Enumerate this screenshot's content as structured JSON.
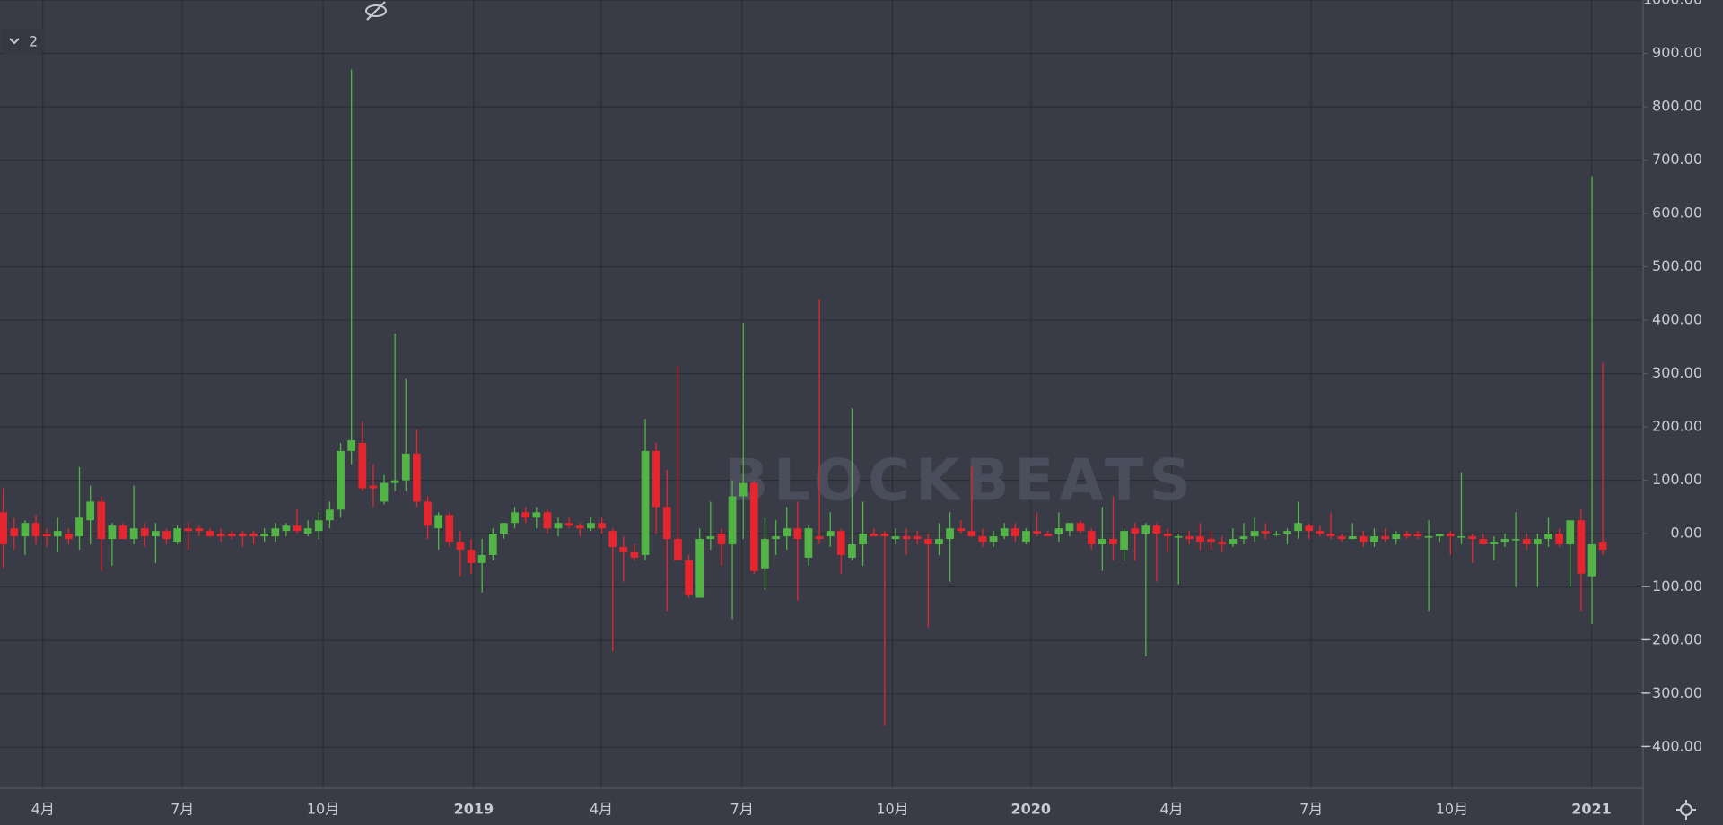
{
  "indicator_label": "2",
  "watermark": "BLOCKBEATS",
  "chart_data": {
    "type": "candlestick",
    "up_color": "#53b446",
    "down_color": "#e5262e",
    "grid": true,
    "xlim": [
      -0.3,
      150.7
    ],
    "ylim": [
      -477,
      1000
    ],
    "xticks": [
      {
        "value": 3.64,
        "label": "4月"
      },
      {
        "value": 16.46,
        "label": "7月"
      },
      {
        "value": 29.39,
        "label": "10月"
      },
      {
        "value": 43.23,
        "label": "2019"
      },
      {
        "value": 54.95,
        "label": "4月"
      },
      {
        "value": 67.88,
        "label": "7月"
      },
      {
        "value": 81.72,
        "label": "10月"
      },
      {
        "value": 94.44,
        "label": "2020"
      },
      {
        "value": 107.37,
        "label": "4月"
      },
      {
        "value": 120.2,
        "label": "7月"
      },
      {
        "value": 133.13,
        "label": "10月"
      },
      {
        "value": 145.96,
        "label": "2021"
      }
    ],
    "yticks": [
      {
        "value": 1000,
        "label": "1000.00"
      },
      {
        "value": 900,
        "label": "900.00"
      },
      {
        "value": 800,
        "label": "800.00"
      },
      {
        "value": 700,
        "label": "700.00"
      },
      {
        "value": 600,
        "label": "600.00"
      },
      {
        "value": 500,
        "label": "500.00"
      },
      {
        "value": 400,
        "label": "400.00"
      },
      {
        "value": 300,
        "label": "300.00"
      },
      {
        "value": 200,
        "label": "200.00"
      },
      {
        "value": 100,
        "label": "100.00"
      },
      {
        "value": 0,
        "label": "0.00"
      },
      {
        "value": -100,
        "label": "−100.00"
      },
      {
        "value": -200,
        "label": "−200.00"
      },
      {
        "value": -300,
        "label": "−300.00"
      },
      {
        "value": -400,
        "label": "−400.00"
      }
    ],
    "candles": [
      [
        40,
        85,
        -65,
        -20
      ],
      [
        10,
        30,
        -30,
        -5
      ],
      [
        -5,
        25,
        -40,
        20
      ],
      [
        20,
        35,
        -20,
        -5
      ],
      [
        0,
        10,
        -25,
        -5
      ],
      [
        -5,
        30,
        -35,
        5
      ],
      [
        0,
        10,
        -20,
        -10
      ],
      [
        -5,
        125,
        -30,
        30
      ],
      [
        25,
        90,
        -20,
        60
      ],
      [
        60,
        70,
        -70,
        -10
      ],
      [
        -10,
        20,
        -60,
        15
      ],
      [
        15,
        20,
        -10,
        -10
      ],
      [
        -10,
        90,
        -20,
        10
      ],
      [
        10,
        20,
        -25,
        -5
      ],
      [
        -5,
        20,
        -55,
        5
      ],
      [
        5,
        10,
        -20,
        -10
      ],
      [
        -15,
        15,
        -20,
        10
      ],
      [
        10,
        20,
        -30,
        5
      ],
      [
        10,
        15,
        -5,
        5
      ],
      [
        5,
        10,
        -5,
        -5
      ],
      [
        0,
        10,
        -15,
        -5
      ],
      [
        0,
        5,
        -10,
        -5
      ],
      [
        0,
        5,
        -25,
        -5
      ],
      [
        0,
        5,
        -20,
        -5
      ],
      [
        -5,
        10,
        -15,
        0
      ],
      [
        -5,
        20,
        -15,
        10
      ],
      [
        5,
        20,
        -5,
        15
      ],
      [
        15,
        45,
        0,
        5
      ],
      [
        0,
        25,
        -5,
        10
      ],
      [
        5,
        40,
        -10,
        25
      ],
      [
        25,
        60,
        10,
        45
      ],
      [
        45,
        170,
        30,
        155
      ],
      [
        155,
        870,
        130,
        175
      ],
      [
        170,
        210,
        80,
        85
      ],
      [
        90,
        130,
        50,
        85
      ],
      [
        60,
        110,
        55,
        95
      ],
      [
        95,
        375,
        80,
        100
      ],
      [
        100,
        290,
        80,
        150
      ],
      [
        150,
        195,
        50,
        60
      ],
      [
        60,
        70,
        -10,
        15
      ],
      [
        10,
        40,
        -30,
        35
      ],
      [
        35,
        40,
        -25,
        -15
      ],
      [
        -15,
        5,
        -80,
        -30
      ],
      [
        -30,
        -10,
        -75,
        -55
      ],
      [
        -55,
        -10,
        -110,
        -40
      ],
      [
        -40,
        10,
        -50,
        0
      ],
      [
        0,
        20,
        -10,
        20
      ],
      [
        20,
        50,
        10,
        40
      ],
      [
        40,
        50,
        20,
        30
      ],
      [
        30,
        50,
        10,
        40
      ],
      [
        40,
        45,
        0,
        10
      ],
      [
        10,
        30,
        -5,
        20
      ],
      [
        20,
        30,
        10,
        15
      ],
      [
        15,
        20,
        -5,
        10
      ],
      [
        10,
        30,
        5,
        20
      ],
      [
        20,
        30,
        0,
        10
      ],
      [
        5,
        10,
        -220,
        -25
      ],
      [
        -25,
        -5,
        -90,
        -35
      ],
      [
        -35,
        -20,
        -50,
        -45
      ],
      [
        -40,
        215,
        -50,
        155
      ],
      [
        155,
        170,
        0,
        50
      ],
      [
        50,
        120,
        -145,
        -10
      ],
      [
        -10,
        315,
        -50,
        -50
      ],
      [
        -50,
        -40,
        -120,
        -115
      ],
      [
        -120,
        10,
        -120,
        -10
      ],
      [
        -10,
        60,
        -30,
        -5
      ],
      [
        0,
        10,
        -60,
        -20
      ],
      [
        -20,
        100,
        -160,
        70
      ],
      [
        70,
        395,
        -10,
        95
      ],
      [
        95,
        100,
        -75,
        -70
      ],
      [
        -65,
        30,
        -105,
        -10
      ],
      [
        -10,
        25,
        -40,
        -5
      ],
      [
        -5,
        50,
        -30,
        10
      ],
      [
        10,
        60,
        -125,
        -10
      ],
      [
        -45,
        15,
        -60,
        10
      ],
      [
        -5,
        440,
        -20,
        -10
      ],
      [
        -5,
        40,
        -25,
        5
      ],
      [
        5,
        10,
        -75,
        -40
      ],
      [
        -45,
        235,
        -50,
        -20
      ],
      [
        -20,
        60,
        -60,
        0
      ],
      [
        0,
        10,
        -5,
        -5
      ],
      [
        0,
        5,
        -360,
        -5
      ],
      [
        -10,
        10,
        -20,
        -5
      ],
      [
        -5,
        10,
        -40,
        -10
      ],
      [
        -5,
        5,
        -20,
        -10
      ],
      [
        -10,
        0,
        -175,
        -20
      ],
      [
        -20,
        20,
        -40,
        -10
      ],
      [
        -10,
        40,
        -90,
        10
      ],
      [
        10,
        25,
        0,
        5
      ],
      [
        5,
        125,
        -5,
        -5
      ],
      [
        -5,
        10,
        -25,
        -15
      ],
      [
        -15,
        5,
        -25,
        -5
      ],
      [
        -5,
        20,
        -10,
        10
      ],
      [
        10,
        20,
        -15,
        -5
      ],
      [
        -15,
        10,
        -20,
        5
      ],
      [
        5,
        40,
        -5,
        0
      ],
      [
        0,
        5,
        -5,
        -5
      ],
      [
        0,
        40,
        -15,
        10
      ],
      [
        5,
        20,
        -5,
        20
      ],
      [
        20,
        25,
        0,
        5
      ],
      [
        5,
        10,
        -30,
        -20
      ],
      [
        -20,
        50,
        -70,
        -10
      ],
      [
        -10,
        70,
        -50,
        -20
      ],
      [
        -30,
        10,
        -50,
        5
      ],
      [
        10,
        20,
        -50,
        0
      ],
      [
        0,
        20,
        -230,
        15
      ],
      [
        15,
        20,
        -90,
        0
      ],
      [
        0,
        10,
        -35,
        -5
      ],
      [
        -5,
        0,
        -95,
        -5
      ],
      [
        -5,
        5,
        -20,
        -10
      ],
      [
        -5,
        20,
        -30,
        -15
      ],
      [
        -10,
        5,
        -30,
        -15
      ],
      [
        -15,
        -5,
        -35,
        -20
      ],
      [
        -20,
        10,
        -25,
        -10
      ],
      [
        -10,
        20,
        -20,
        -5
      ],
      [
        -5,
        30,
        -15,
        5
      ],
      [
        5,
        20,
        -10,
        0
      ],
      [
        0,
        5,
        -5,
        0
      ],
      [
        0,
        10,
        -20,
        5
      ],
      [
        5,
        60,
        -10,
        20
      ],
      [
        15,
        20,
        -10,
        5
      ],
      [
        5,
        15,
        -5,
        0
      ],
      [
        0,
        40,
        -10,
        -5
      ],
      [
        -5,
        0,
        -15,
        -10
      ],
      [
        -10,
        20,
        -10,
        -5
      ],
      [
        -5,
        5,
        -25,
        -15
      ],
      [
        -15,
        10,
        -25,
        -5
      ],
      [
        -5,
        10,
        -15,
        -10
      ],
      [
        -10,
        5,
        -20,
        0
      ],
      [
        0,
        5,
        -10,
        -5
      ],
      [
        0,
        5,
        -10,
        -5
      ],
      [
        -5,
        25,
        -145,
        -5
      ],
      [
        -5,
        0,
        -15,
        0
      ],
      [
        0,
        5,
        -40,
        -5
      ],
      [
        -5,
        115,
        -20,
        -5
      ],
      [
        -5,
        0,
        -55,
        -10
      ],
      [
        -10,
        0,
        -20,
        -20
      ],
      [
        -20,
        -5,
        -50,
        -15
      ],
      [
        -15,
        0,
        -25,
        -10
      ],
      [
        -10,
        40,
        -100,
        -10
      ],
      [
        -10,
        0,
        -30,
        -20
      ],
      [
        -20,
        0,
        -100,
        -10
      ],
      [
        -10,
        30,
        -25,
        0
      ],
      [
        0,
        10,
        -25,
        -20
      ],
      [
        -20,
        20,
        -100,
        25
      ],
      [
        25,
        45,
        -145,
        -75
      ],
      [
        -80,
        670,
        -170,
        -20
      ],
      [
        -15,
        320,
        -40,
        -30
      ]
    ]
  }
}
